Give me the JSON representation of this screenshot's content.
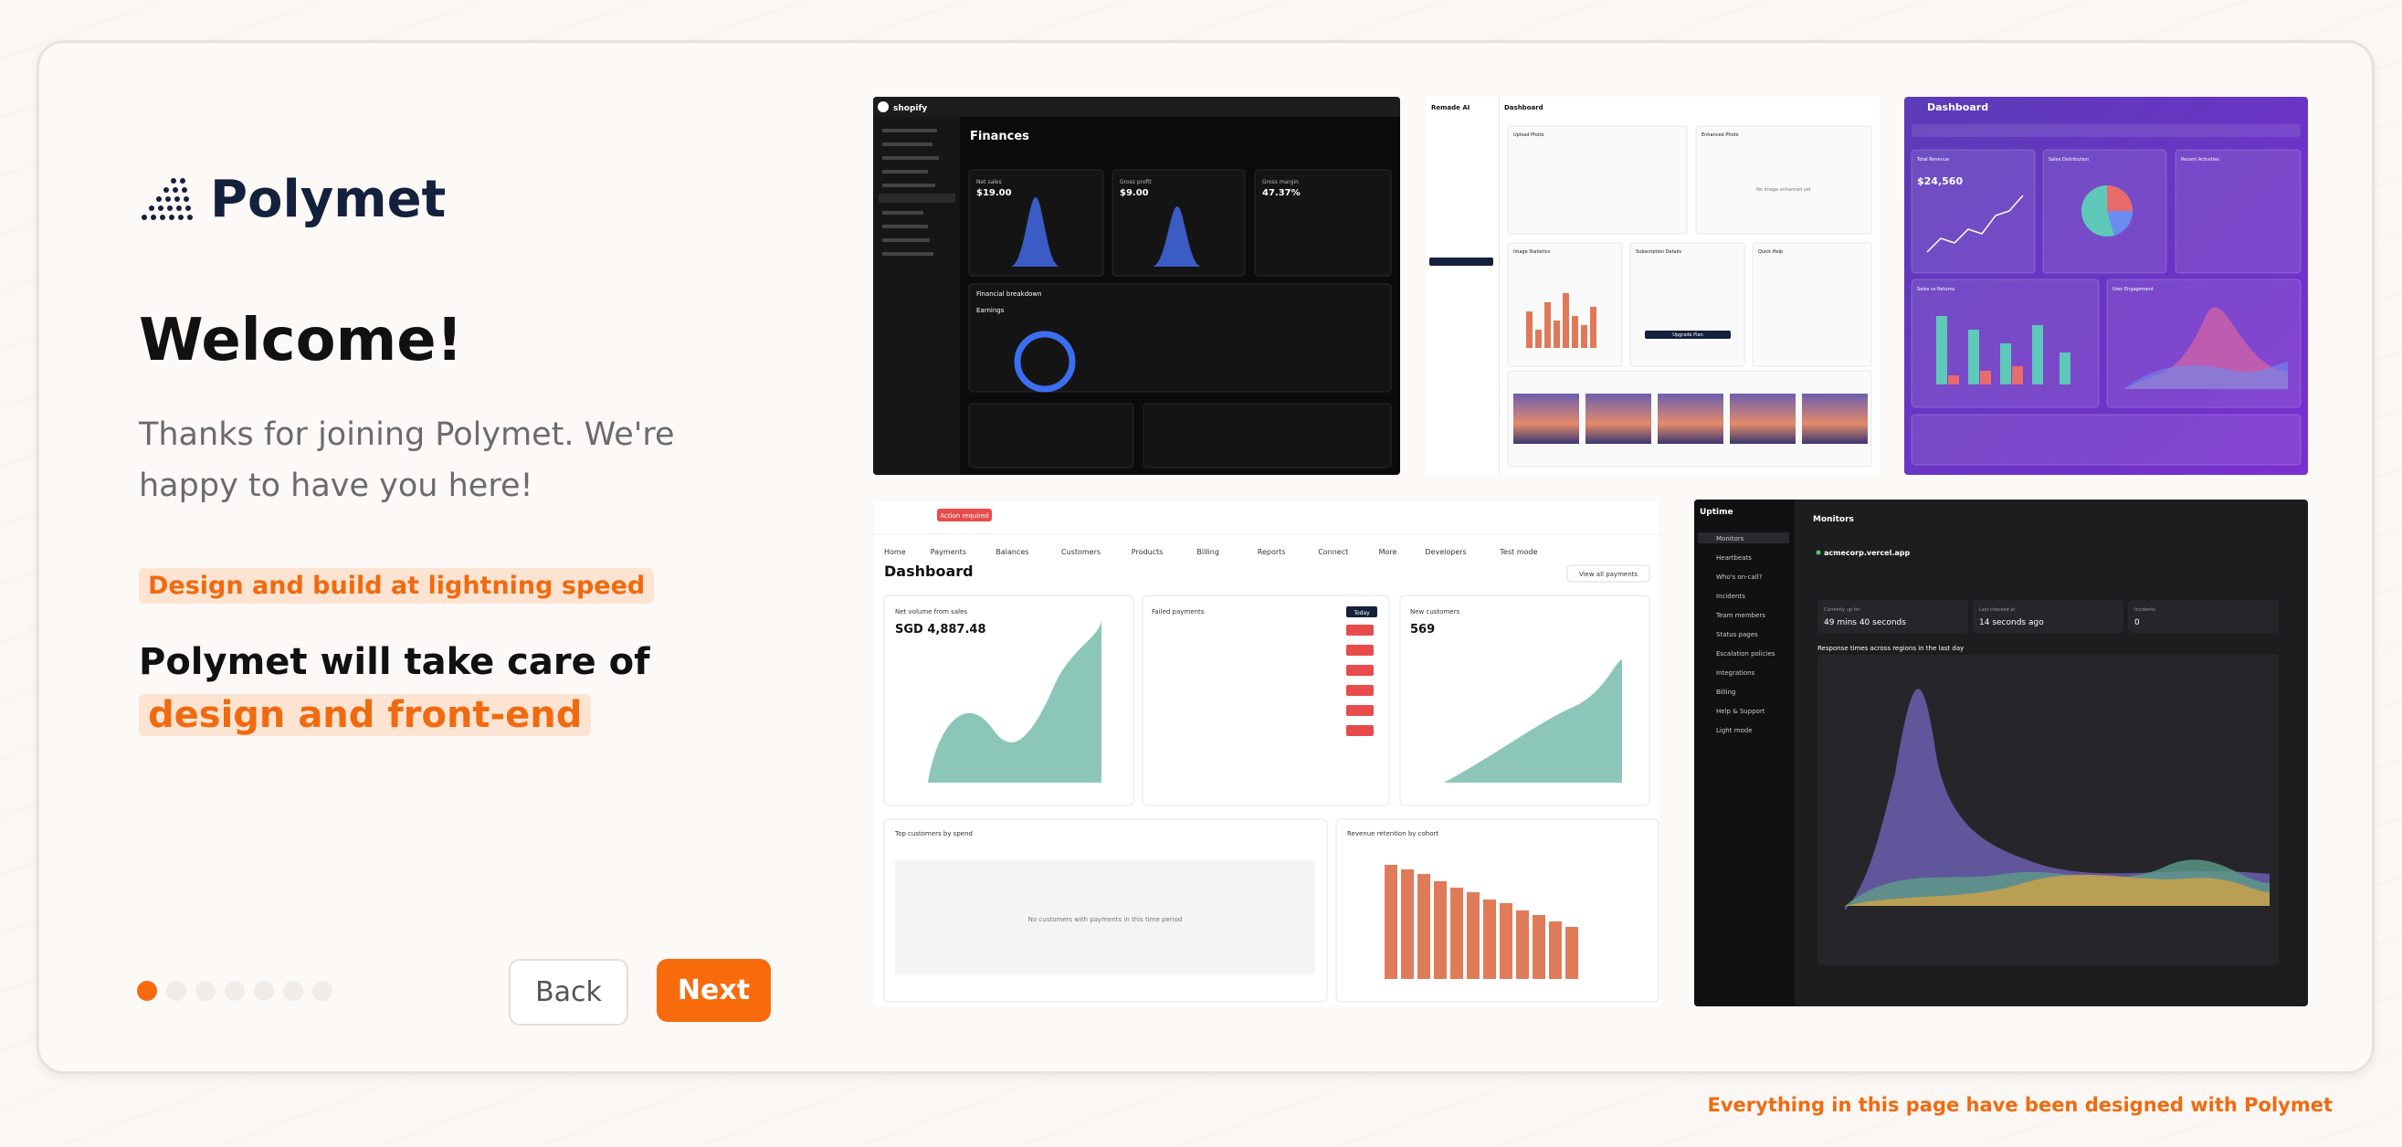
{
  "logo": "Polymet",
  "title": "Welcome!",
  "intro": [
    "Thanks for joining Polymet. We're",
    "happy to have you here!"
  ],
  "badge": "Design and build at lightning speed",
  "heading": [
    "Polymet will take care of",
    "design and front-end"
  ],
  "buttons": {
    "back": "Back",
    "next": "Next"
  },
  "footer": "Everything in this page have been designed with Polymet",
  "thumbs": {
    "finances": {
      "brand": "shopify",
      "title": "Finances",
      "cards": [
        [
          "Net sales",
          "$19.00"
        ],
        [
          "Gross profit",
          "$9.00"
        ],
        [
          "Gross margin",
          "47.37%"
        ]
      ],
      "section": "Financial breakdown",
      "sub": "Earnings"
    },
    "remade": {
      "brand": "Remade AI",
      "title": "Dashboard",
      "boxes": [
        "Upload Photo",
        "Enhanced Photo",
        "Image Statistics",
        "Subscription Details",
        "Quick Help"
      ],
      "empty": "No image enhanced yet",
      "button": "Upgrade Plan"
    },
    "purple": {
      "title": "Dashboard",
      "cards": [
        "Total Revenue",
        "Sales Distribution",
        "Recent Activities",
        "Sales vs Returns",
        "User Engagement"
      ],
      "revenue": "$24,560"
    },
    "payments": {
      "title": "Dashboard",
      "nav": [
        "Home",
        "Payments",
        "Balances",
        "Customers",
        "Products",
        "Billing",
        "Reports",
        "Connect",
        "More",
        "Developers",
        "Test mode"
      ],
      "badge": "Action required",
      "view": "View all payments",
      "cards": [
        [
          "Net volume from sales",
          "SGD 4,887.48"
        ],
        [
          "Failed payments",
          "Today"
        ],
        [
          "New customers",
          "569"
        ]
      ],
      "bottom": [
        "Top customers by spend",
        "Revenue retention by cohort"
      ],
      "empty": "No customers with payments in this time period"
    },
    "uptime": {
      "brand": "Uptime",
      "title": "Monitors",
      "menu": [
        "Monitors",
        "Heartbeats",
        "Who's on-call?",
        "Incidents",
        "Team members",
        "Status pages",
        "Escalation policies",
        "Integrations",
        "Billing",
        "Help & Support",
        "Light mode"
      ],
      "site": "acmecorp.vercel.app",
      "stats": [
        [
          "Currently up for",
          "49 mins 40 seconds"
        ],
        [
          "Last checked at",
          "14 seconds ago"
        ],
        [
          "Incidents",
          "0"
        ]
      ],
      "chart": "Response times across regions in the last day"
    }
  }
}
